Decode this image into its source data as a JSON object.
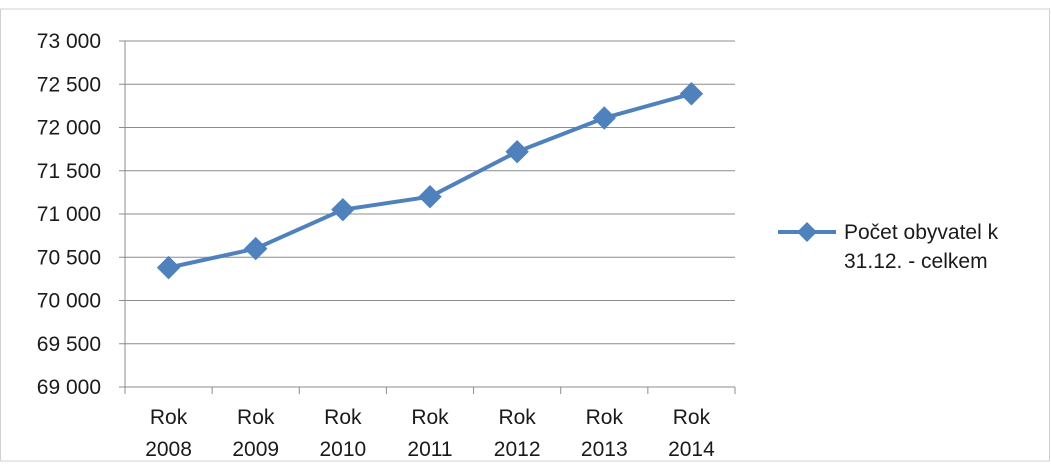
{
  "chart_data": {
    "type": "line",
    "title": "",
    "xlabel": "",
    "ylabel": "",
    "categories": [
      [
        "Rok",
        "2008"
      ],
      [
        "Rok",
        "2009"
      ],
      [
        "Rok",
        "2010"
      ],
      [
        "Rok",
        "2011"
      ],
      [
        "Rok",
        "2012"
      ],
      [
        "Rok",
        "2013"
      ],
      [
        "Rok",
        "2014"
      ]
    ],
    "series": [
      {
        "name": "Počet obyvatel k 31.12. - celkem",
        "name_lines": [
          "Počet obyvatel k",
          "31.12. - celkem"
        ],
        "values": [
          70380,
          70600,
          71050,
          71200,
          71720,
          72110,
          72390
        ],
        "color": "#4f81bd",
        "marker": "diamond"
      }
    ],
    "ylim": [
      69000,
      73000
    ],
    "yticks": [
      69000,
      69500,
      70000,
      70500,
      71000,
      71500,
      72000,
      72500,
      73000
    ],
    "ytick_labels": [
      "69 000",
      "69 500",
      "70 000",
      "70 500",
      "71 000",
      "71 500",
      "72 000",
      "72 500",
      "73 000"
    ],
    "grid": true,
    "legend": "right"
  }
}
